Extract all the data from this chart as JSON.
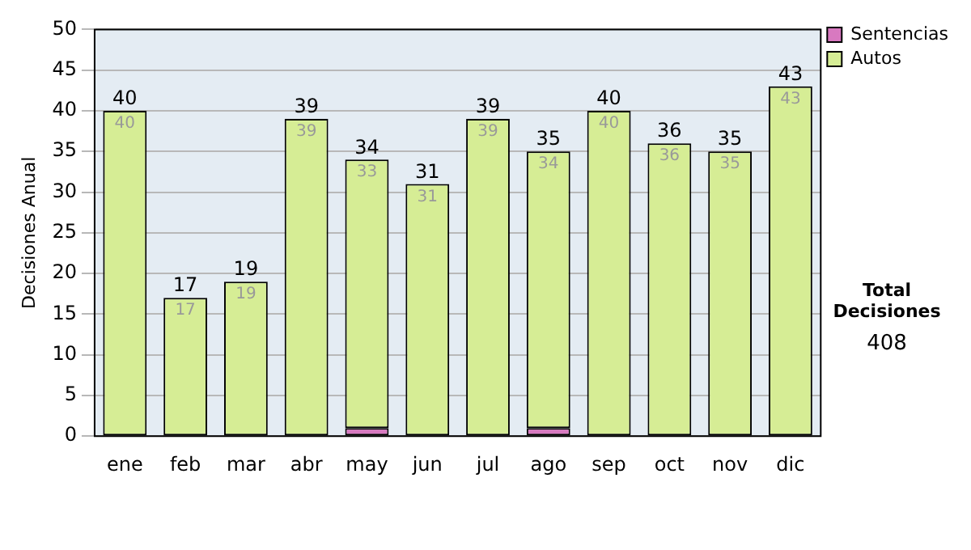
{
  "chart_data": {
    "type": "bar",
    "stacked": true,
    "ylabel": "Decisiones Anual",
    "categories": [
      "ene",
      "feb",
      "mar",
      "abr",
      "may",
      "jun",
      "jul",
      "ago",
      "sep",
      "oct",
      "nov",
      "dic"
    ],
    "series": [
      {
        "name": "Sentencias",
        "color": "#d879c0",
        "values": [
          0,
          0,
          0,
          0,
          1,
          0,
          0,
          1,
          0,
          0,
          0,
          0
        ]
      },
      {
        "name": "Autos",
        "color": "#d6ed95",
        "values": [
          40,
          17,
          19,
          39,
          33,
          31,
          39,
          34,
          40,
          36,
          35,
          43
        ],
        "value_labels": [
          "40",
          "17",
          "19",
          "39",
          "33",
          "31",
          "39",
          "34",
          "40",
          "36",
          "35",
          "43"
        ]
      }
    ],
    "totals": [
      "40",
      "17",
      "19",
      "39",
      "34",
      "31",
      "39",
      "35",
      "40",
      "36",
      "35",
      "43"
    ],
    "ylim": [
      0,
      50
    ],
    "yticks": [
      0,
      5,
      10,
      15,
      20,
      25,
      30,
      35,
      40,
      45,
      50
    ],
    "grid": "y",
    "legend": "right",
    "annotations": [
      "Total Decisiones",
      "408"
    ]
  }
}
